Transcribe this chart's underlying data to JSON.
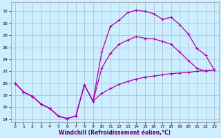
{
  "xlabel": "Windchill (Refroidissement éolien,°C)",
  "xlim": [
    -0.5,
    23.5
  ],
  "ylim": [
    13.5,
    33.5
  ],
  "yticks": [
    14,
    16,
    18,
    20,
    22,
    24,
    26,
    28,
    30,
    32
  ],
  "xticks": [
    0,
    1,
    2,
    3,
    4,
    5,
    6,
    7,
    8,
    9,
    10,
    11,
    12,
    13,
    14,
    15,
    16,
    17,
    18,
    19,
    20,
    21,
    22,
    23
  ],
  "background_color": "#cceeff",
  "grid_color": "#aabbcc",
  "line_color": "#aa00aa",
  "line1_x": [
    0,
    1,
    2,
    3,
    4,
    5,
    6,
    7,
    8,
    9,
    10,
    11,
    12,
    13,
    14,
    15,
    16,
    17,
    18,
    19,
    20,
    21,
    22,
    23
  ],
  "line1_y": [
    20.0,
    18.5,
    17.8,
    16.5,
    15.8,
    14.5,
    14.1,
    14.5,
    19.7,
    17.0,
    25.2,
    29.5,
    30.5,
    31.8,
    32.2,
    32.0,
    31.6,
    30.7,
    31.0,
    29.8,
    28.2,
    25.8,
    24.7,
    22.2
  ],
  "line2_x": [
    0,
    1,
    2,
    3,
    4,
    5,
    6,
    7,
    8,
    9,
    10,
    11,
    12,
    13,
    14,
    15,
    16,
    17,
    18,
    19,
    20,
    21,
    22,
    23
  ],
  "line2_y": [
    20.0,
    18.5,
    17.8,
    16.5,
    15.8,
    14.5,
    14.1,
    14.5,
    19.7,
    17.0,
    22.5,
    25.0,
    26.5,
    27.2,
    27.8,
    27.5,
    27.4,
    27.0,
    26.5,
    25.2,
    23.8,
    22.5,
    22.0,
    22.2
  ],
  "line3_x": [
    0,
    1,
    2,
    3,
    4,
    5,
    6,
    7,
    8,
    9,
    10,
    11,
    12,
    13,
    14,
    15,
    16,
    17,
    18,
    19,
    20,
    21,
    22,
    23
  ],
  "line3_y": [
    20.0,
    18.5,
    17.8,
    16.5,
    15.8,
    14.5,
    14.1,
    14.5,
    19.7,
    17.0,
    18.3,
    19.1,
    19.8,
    20.3,
    20.7,
    21.0,
    21.2,
    21.4,
    21.6,
    21.7,
    21.8,
    22.0,
    22.1,
    22.2
  ]
}
